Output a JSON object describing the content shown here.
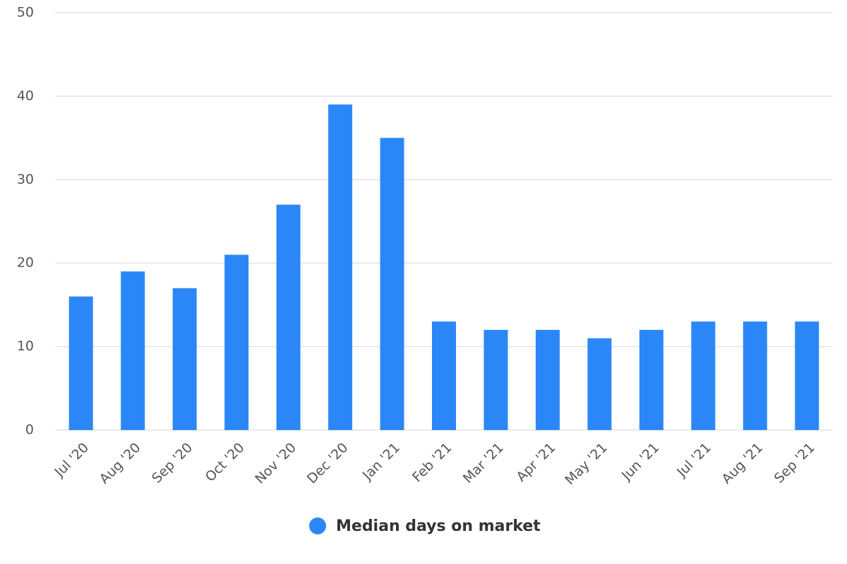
{
  "chart_data": {
    "type": "bar",
    "categories": [
      "Jul '20",
      "Aug '20",
      "Sep '20",
      "Oct '20",
      "Nov '20",
      "Dec '20",
      "Jan '21",
      "Feb '21",
      "Mar '21",
      "Apr '21",
      "May '21",
      "Jun '21",
      "Jul '21",
      "Aug '21",
      "Sep '21"
    ],
    "series": [
      {
        "name": "Median days on market",
        "color": "#2b87f7",
        "values": [
          16,
          19,
          17,
          21,
          27,
          39,
          35,
          13,
          12,
          12,
          11,
          12,
          13,
          13,
          13
        ]
      }
    ],
    "ylim": [
      0,
      50
    ],
    "yticks": [
      0,
      10,
      20,
      30,
      40,
      50
    ],
    "grid": true
  }
}
